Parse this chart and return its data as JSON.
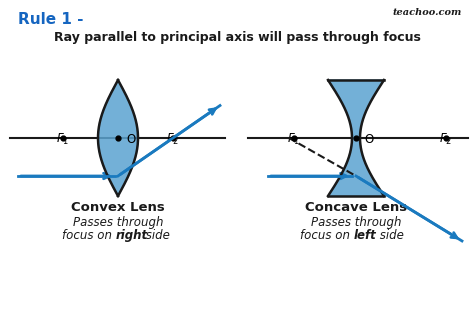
{
  "title_rule": "Rule 1 -",
  "title_rule_color": "#1565C0",
  "subtitle": "Ray parallel to principal axis will pass through focus",
  "teachoo_text": "teachoo.com",
  "bg_color": "#ffffff",
  "lens_fill": "#5ba3d0",
  "lens_edge": "#1a1a1a",
  "axis_color": "#1a1a1a",
  "ray_color": "#1a7abf",
  "convex_label": "Convex Lens",
  "concave_label": "Concave Lens",
  "convex_sub1": "Passes through",
  "convex_sub2": "focus on ",
  "convex_sub2_bold": "right",
  "convex_sub3": " side",
  "concave_sub1": "Passes through",
  "concave_sub2": "focus on ",
  "concave_sub2_bold": "left",
  "concave_sub3": " side"
}
